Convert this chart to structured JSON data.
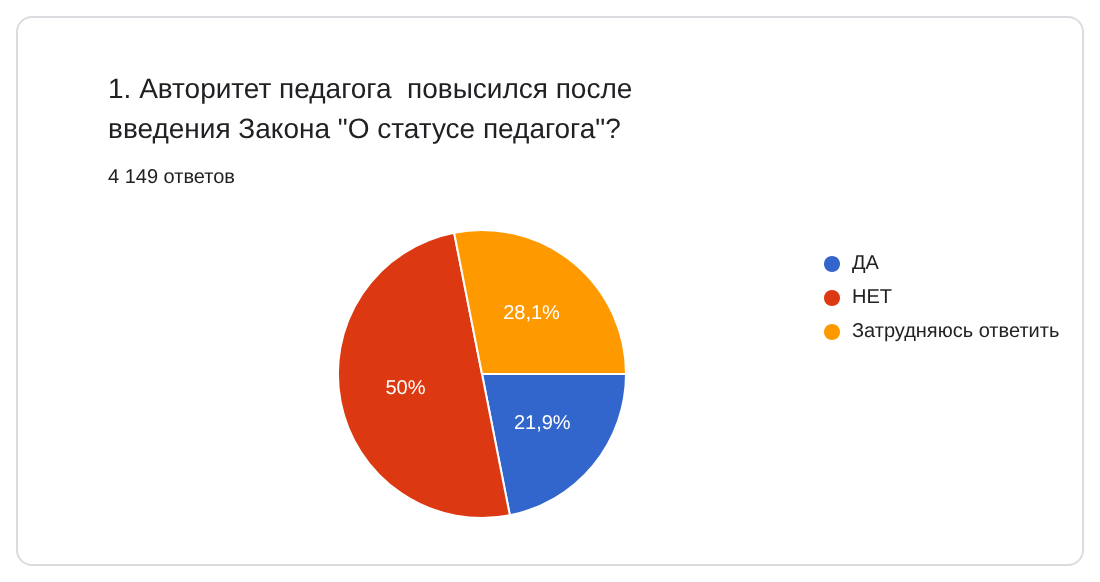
{
  "chart_data": {
    "type": "pie",
    "title": "1. Авторитет педагога  повысился после введения Закона \"О статусе педагога\"?",
    "subtitle": "4 149 ответов",
    "categories": [
      "ДА",
      "НЕТ",
      "Затрудняюсь ответить"
    ],
    "values": [
      21.9,
      50,
      28.1
    ],
    "colors": [
      "#3366cc",
      "#dc3912",
      "#ff9900"
    ],
    "value_labels": [
      "21,9%",
      "50%",
      "28,1%"
    ],
    "legend": "right"
  }
}
